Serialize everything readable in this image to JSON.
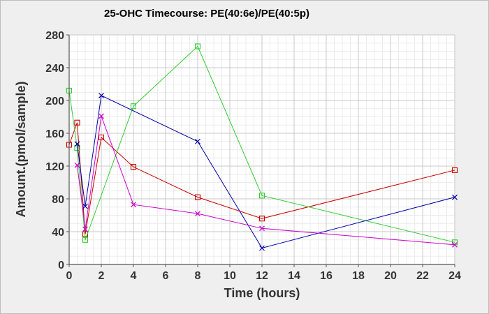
{
  "chart_data": {
    "type": "line",
    "title": "25-OHC Timecourse: PE(40:6e)/PE(40:5p)",
    "xlabel": "Time (hours)",
    "ylabel": "Amount.(pmol/sample)",
    "xlim": [
      0,
      24
    ],
    "ylim": [
      0,
      280
    ],
    "xticks": [
      0,
      2,
      4,
      6,
      8,
      10,
      12,
      14,
      16,
      18,
      20,
      22,
      24
    ],
    "yticks": [
      0,
      40,
      80,
      120,
      160,
      200,
      240,
      280
    ],
    "grid": true,
    "legend": "none",
    "series": [
      {
        "color": "#cc0000",
        "marker": "square",
        "x": [
          0,
          0.5,
          1,
          2,
          4,
          8,
          12,
          24
        ],
        "y": [
          146,
          173,
          37,
          155,
          119,
          82,
          56,
          115
        ]
      },
      {
        "color": "#33cc33",
        "marker": "square",
        "x": [
          0,
          0.5,
          1,
          4,
          8,
          12,
          24
        ],
        "y": [
          212,
          142,
          30,
          193,
          266,
          84,
          27
        ]
      },
      {
        "color": "#0000aa",
        "marker": "x",
        "x": [
          0.5,
          1,
          2,
          8,
          12,
          24
        ],
        "y": [
          147,
          71,
          206,
          150,
          20,
          82
        ]
      },
      {
        "color": "#cc00cc",
        "marker": "x",
        "x": [
          0.5,
          1,
          2,
          4,
          8,
          12,
          24
        ],
        "y": [
          121,
          43,
          181,
          73,
          62,
          44,
          24
        ]
      }
    ]
  }
}
